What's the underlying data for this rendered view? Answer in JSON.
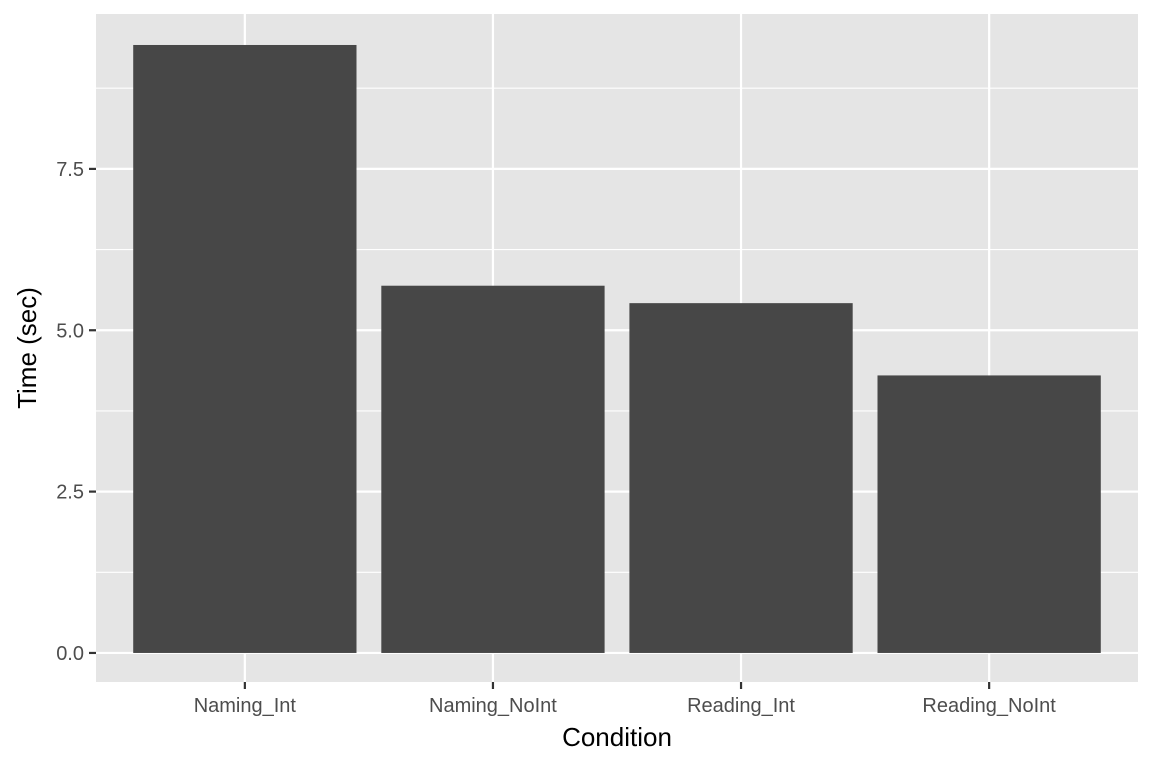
{
  "chart_data": {
    "type": "bar",
    "title": "",
    "xlabel": "Condition",
    "ylabel": "Time (sec)",
    "categories": [
      "Naming_Int",
      "Naming_NoInt",
      "Reading_Int",
      "Reading_NoInt"
    ],
    "values": [
      9.42,
      5.69,
      5.42,
      4.3
    ],
    "ylim": [
      -0.45,
      9.9
    ],
    "yticks": [
      0.0,
      2.5,
      5.0,
      7.5
    ],
    "ytick_labels": [
      "0.0",
      "2.5",
      "5.0",
      "7.5"
    ],
    "grid": true,
    "legend": "none",
    "colors": {
      "panel_background": "#e5e5e5",
      "grid": "#ffffff",
      "bar_fill": "#474747",
      "tick": "#333333",
      "tick_label": "#4d4d4d"
    }
  }
}
